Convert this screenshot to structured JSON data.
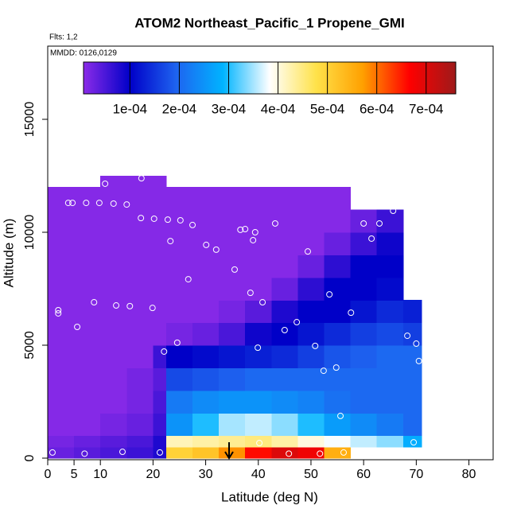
{
  "chart_data": {
    "type": "heatmap",
    "title": "ATOM2 Northeast_Pacific_1 Propene_GMI",
    "subtitle": "Flts: 1,2",
    "annotation": "MMDD: 0126,0129",
    "x_label": "Latitude (deg N)",
    "y_label": "Altitude (m)",
    "xlim": [
      0,
      84.6
    ],
    "ylim": [
      -70,
      18240
    ],
    "xticks": [
      0,
      5,
      10,
      20,
      30,
      40,
      50,
      60,
      70,
      80
    ],
    "yticks": [
      0,
      5000,
      10000,
      15000
    ],
    "x_edges": [
      0,
      5,
      10,
      15,
      20,
      22.5,
      27.5,
      32.5,
      37.5,
      42.5,
      47.5,
      52.5,
      57.5,
      62.5,
      67.5,
      71
    ],
    "y_edges": [
      0,
      500,
      1000,
      2000,
      3000,
      4000,
      5000,
      6000,
      7000,
      8000,
      9000,
      10000,
      11000,
      12000,
      12500
    ],
    "values": [
      [
        3e-05,
        4e-05,
        5e-05,
        6e-05,
        8e-05,
        0.0005,
        0.00052,
        0.00058,
        0.00066,
        0.0007,
        0.00068,
        0.00055,
        null,
        null,
        null
      ],
      [
        2e-05,
        3e-05,
        4e-05,
        5e-05,
        8e-05,
        0.00042,
        0.00043,
        0.00044,
        0.00045,
        0.00043,
        0.0004,
        0.00038,
        0.00036,
        0.00034,
        0.00028
      ],
      [
        1e-05,
        1e-05,
        2e-05,
        3e-05,
        6e-05,
        0.00025,
        0.0003,
        0.00035,
        0.00036,
        0.00034,
        0.0003,
        0.00026,
        0.00024,
        0.00022,
        0.0002
      ],
      [
        1e-05,
        1e-05,
        1e-05,
        2e-05,
        5e-05,
        0.00022,
        0.00024,
        0.00025,
        0.00025,
        0.00024,
        0.00023,
        0.00021,
        0.0002,
        0.0002,
        0.0002
      ],
      [
        1e-05,
        1e-05,
        1e-05,
        2e-05,
        4e-05,
        0.00017,
        0.00018,
        0.00019,
        0.0002,
        0.0002,
        0.0002,
        0.0002,
        0.0002,
        0.0002,
        0.0002
      ],
      [
        1e-05,
        1e-05,
        1e-05,
        1e-05,
        6e-05,
        0.0001,
        0.00011,
        0.00012,
        0.00013,
        0.00014,
        0.00016,
        0.00018,
        0.00019,
        0.0002,
        0.0002
      ],
      [
        1e-05,
        1e-05,
        1e-05,
        1e-05,
        1e-05,
        2e-05,
        3e-05,
        5e-05,
        9e-05,
        0.0001,
        0.00012,
        0.00014,
        0.00016,
        0.00017,
        0.00016
      ],
      [
        1e-05,
        1e-05,
        1e-05,
        1e-05,
        1e-05,
        1e-05,
        1e-05,
        2e-05,
        4e-05,
        8e-05,
        0.0001,
        0.0001,
        0.00012,
        0.00014,
        0.00013
      ],
      [
        1e-05,
        1e-05,
        1e-05,
        1e-05,
        1e-05,
        1e-05,
        1e-05,
        1e-05,
        1e-05,
        3e-05,
        7e-05,
        0.0001,
        0.0001,
        0.00011,
        null
      ],
      [
        1e-05,
        1e-05,
        1e-05,
        1e-05,
        1e-05,
        1e-05,
        1e-05,
        1e-05,
        1e-05,
        1e-05,
        3e-05,
        7e-05,
        0.0001,
        0.0001,
        null
      ],
      [
        1e-05,
        1e-05,
        1e-05,
        1e-05,
        1e-05,
        1e-05,
        1e-05,
        1e-05,
        1e-05,
        1e-05,
        1e-05,
        3e-05,
        6e-05,
        9e-05,
        null
      ],
      [
        1e-05,
        1e-05,
        1e-05,
        1e-05,
        1e-05,
        1e-05,
        1e-05,
        1e-05,
        1e-05,
        1e-05,
        1e-05,
        1e-05,
        3e-05,
        6e-05,
        null
      ],
      [
        1e-05,
        1e-05,
        1e-05,
        1e-05,
        1e-05,
        1e-05,
        1e-05,
        1e-05,
        1e-05,
        1e-05,
        1e-05,
        1e-05,
        null,
        null,
        null
      ],
      [
        null,
        null,
        1e-05,
        1e-05,
        1e-05,
        null,
        null,
        null,
        null,
        null,
        null,
        null,
        null,
        null,
        null
      ]
    ],
    "colorbar": {
      "lim": [
        6e-06,
        0.00076
      ],
      "colors": [
        "#8b2be8",
        "#0000c8",
        "#1e64f0",
        "#00b4ff",
        "#ffffff",
        "#ffe24a",
        "#ffa000",
        "#ff0000",
        "#9e1a1a"
      ],
      "ticks": [
        {
          "value": 0.0001,
          "label": "1e-04"
        },
        {
          "value": 0.0002,
          "label": "2e-04"
        },
        {
          "value": 0.0003,
          "label": "3e-04"
        },
        {
          "value": 0.0004,
          "label": "4e-04"
        },
        {
          "value": 0.0005,
          "label": "5e-04"
        },
        {
          "value": 0.0006,
          "label": "6e-04"
        },
        {
          "value": 0.0007,
          "label": "7e-04"
        }
      ]
    },
    "points": {
      "color": "#ffffff",
      "x": [
        0.9,
        7,
        14.2,
        21.3,
        40.2,
        45.8,
        51.7,
        56.2,
        69.5,
        55.6,
        52.4,
        54.8,
        50.8,
        70.5,
        70,
        68.3,
        39.9,
        22.1,
        24.6,
        45,
        47.3,
        57.6,
        53.5,
        40.8,
        38.5,
        35.5,
        26.7,
        2,
        2,
        5.6,
        8.8,
        13,
        15.6,
        19.9,
        30.1,
        32,
        39,
        39.4,
        37.5,
        36.6,
        43.2,
        49.4,
        23.3,
        17.7,
        20.2,
        22.8,
        25.2,
        27.5,
        60,
        61.5,
        63,
        65.6,
        3.9,
        4.7,
        7.3,
        9.8,
        12.5,
        15,
        10.9,
        17.8
      ],
      "y": [
        250,
        200,
        280,
        250,
        670,
        200,
        200,
        250,
        700,
        1870,
        3870,
        4010,
        4970,
        4300,
        5070,
        5420,
        4890,
        4720,
        5110,
        5670,
        6020,
        6440,
        7250,
        6900,
        7320,
        8350,
        7920,
        6550,
        6410,
        5810,
        6900,
        6760,
        6730,
        6650,
        9440,
        9230,
        9650,
        10000,
        10140,
        10110,
        10390,
        9150,
        9610,
        10630,
        10600,
        10560,
        10530,
        10320,
        10390,
        9720,
        10390,
        10950,
        11300,
        11300,
        11300,
        11300,
        11270,
        11230,
        12150,
        12390
      ]
    }
  }
}
